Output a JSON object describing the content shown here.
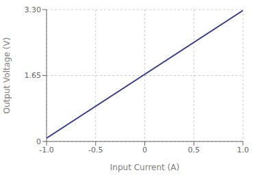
{
  "chart_data": {
    "type": "line",
    "x": [
      -1.0,
      1.0
    ],
    "values": [
      0.082,
      3.278
    ],
    "color": "#3a3f8f",
    "xlabel": "Input Current (A)",
    "ylabel": "Output Voltage (V)",
    "xlim": [
      -1.0,
      1.0
    ],
    "ylim": [
      0,
      3.3
    ],
    "xticks": [
      {
        "value": -1.0,
        "label": "-1.0"
      },
      -0.5,
      0,
      0.5,
      {
        "value": 1.0,
        "label": "1.0"
      }
    ],
    "yticks": [
      0,
      1.65,
      {
        "value": 3.3,
        "label": "3.30"
      }
    ],
    "grid": true
  }
}
